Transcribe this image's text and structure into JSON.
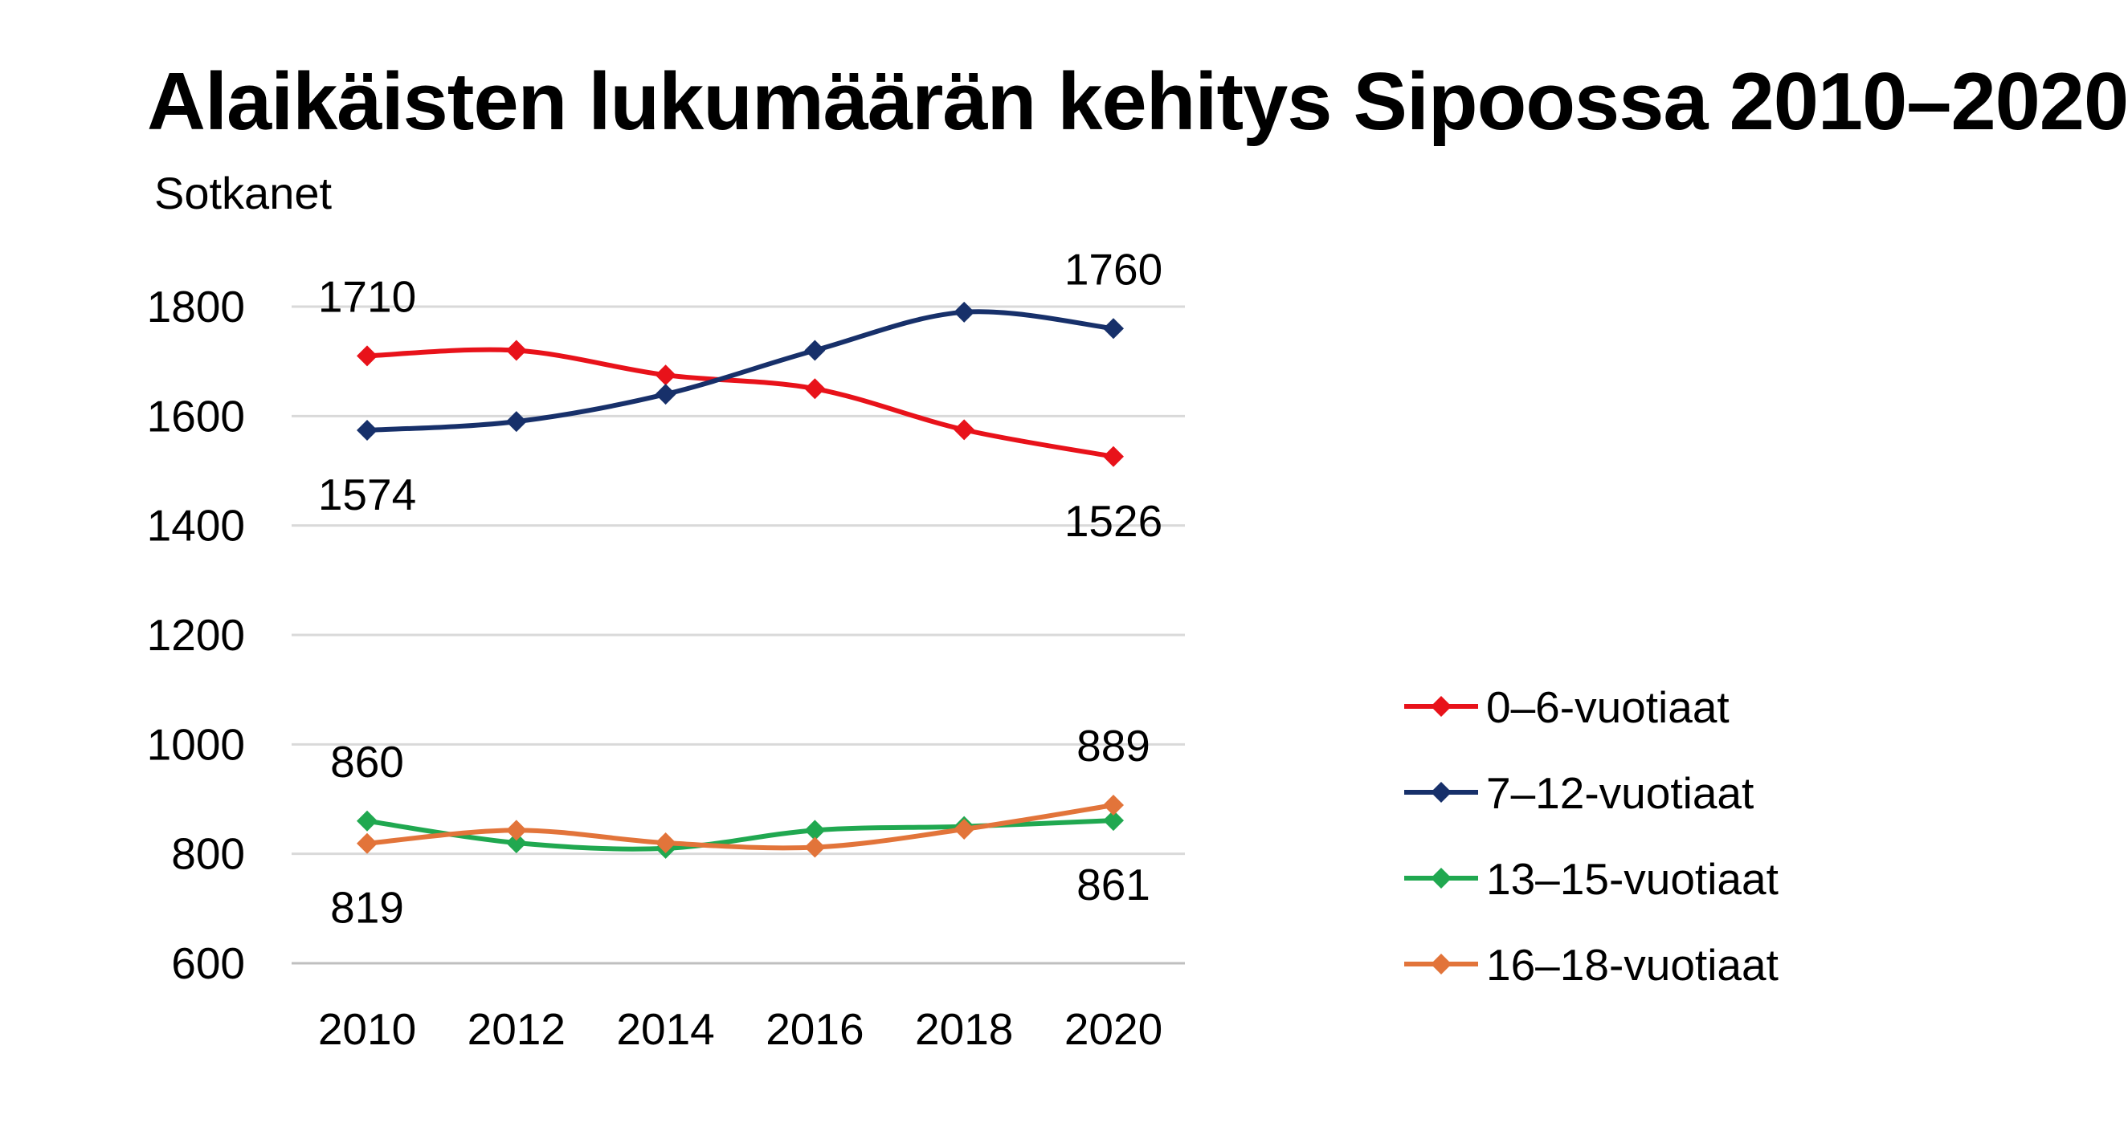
{
  "chart_data": {
    "type": "line",
    "title": "Alaikäisten lukumäärän kehitys Sipoossa 2010–2020",
    "subtitle": "Sotkanet",
    "xlabel": "",
    "ylabel": "",
    "x": [
      "2010",
      "2012",
      "2014",
      "2016",
      "2018",
      "2020"
    ],
    "ylim": [
      600,
      1800
    ],
    "yticks": [
      "600",
      "800",
      "1000",
      "1200",
      "1400",
      "1600",
      "1800"
    ],
    "grid": true,
    "legend_position": "right",
    "series": [
      {
        "name": "0–6-vuotiaat",
        "color": "#e8121a",
        "values": [
          1710,
          1720,
          1675,
          1650,
          1575,
          1526
        ]
      },
      {
        "name": "7–12-vuotiaat",
        "color": "#17306a",
        "values": [
          1574,
          1590,
          1640,
          1720,
          1790,
          1760
        ]
      },
      {
        "name": "13–15-vuotiaat",
        "color": "#20a850",
        "values": [
          860,
          820,
          810,
          843,
          850,
          861
        ]
      },
      {
        "name": "16–18-vuotiaat",
        "color": "#e2743a",
        "values": [
          819,
          843,
          820,
          812,
          845,
          889
        ]
      }
    ],
    "annotations": [
      {
        "text": "1710",
        "series": 0,
        "x": "2010",
        "position": "above"
      },
      {
        "text": "1526",
        "series": 0,
        "x": "2020",
        "position": "below"
      },
      {
        "text": "1574",
        "series": 1,
        "x": "2010",
        "position": "below"
      },
      {
        "text": "1760",
        "series": 1,
        "x": "2020",
        "position": "above"
      },
      {
        "text": "860",
        "series": 2,
        "x": "2010",
        "position": "above"
      },
      {
        "text": "861",
        "series": 2,
        "x": "2020",
        "position": "below"
      },
      {
        "text": "819",
        "series": 3,
        "x": "2010",
        "position": "below"
      },
      {
        "text": "889",
        "series": 3,
        "x": "2020",
        "position": "above"
      }
    ]
  }
}
